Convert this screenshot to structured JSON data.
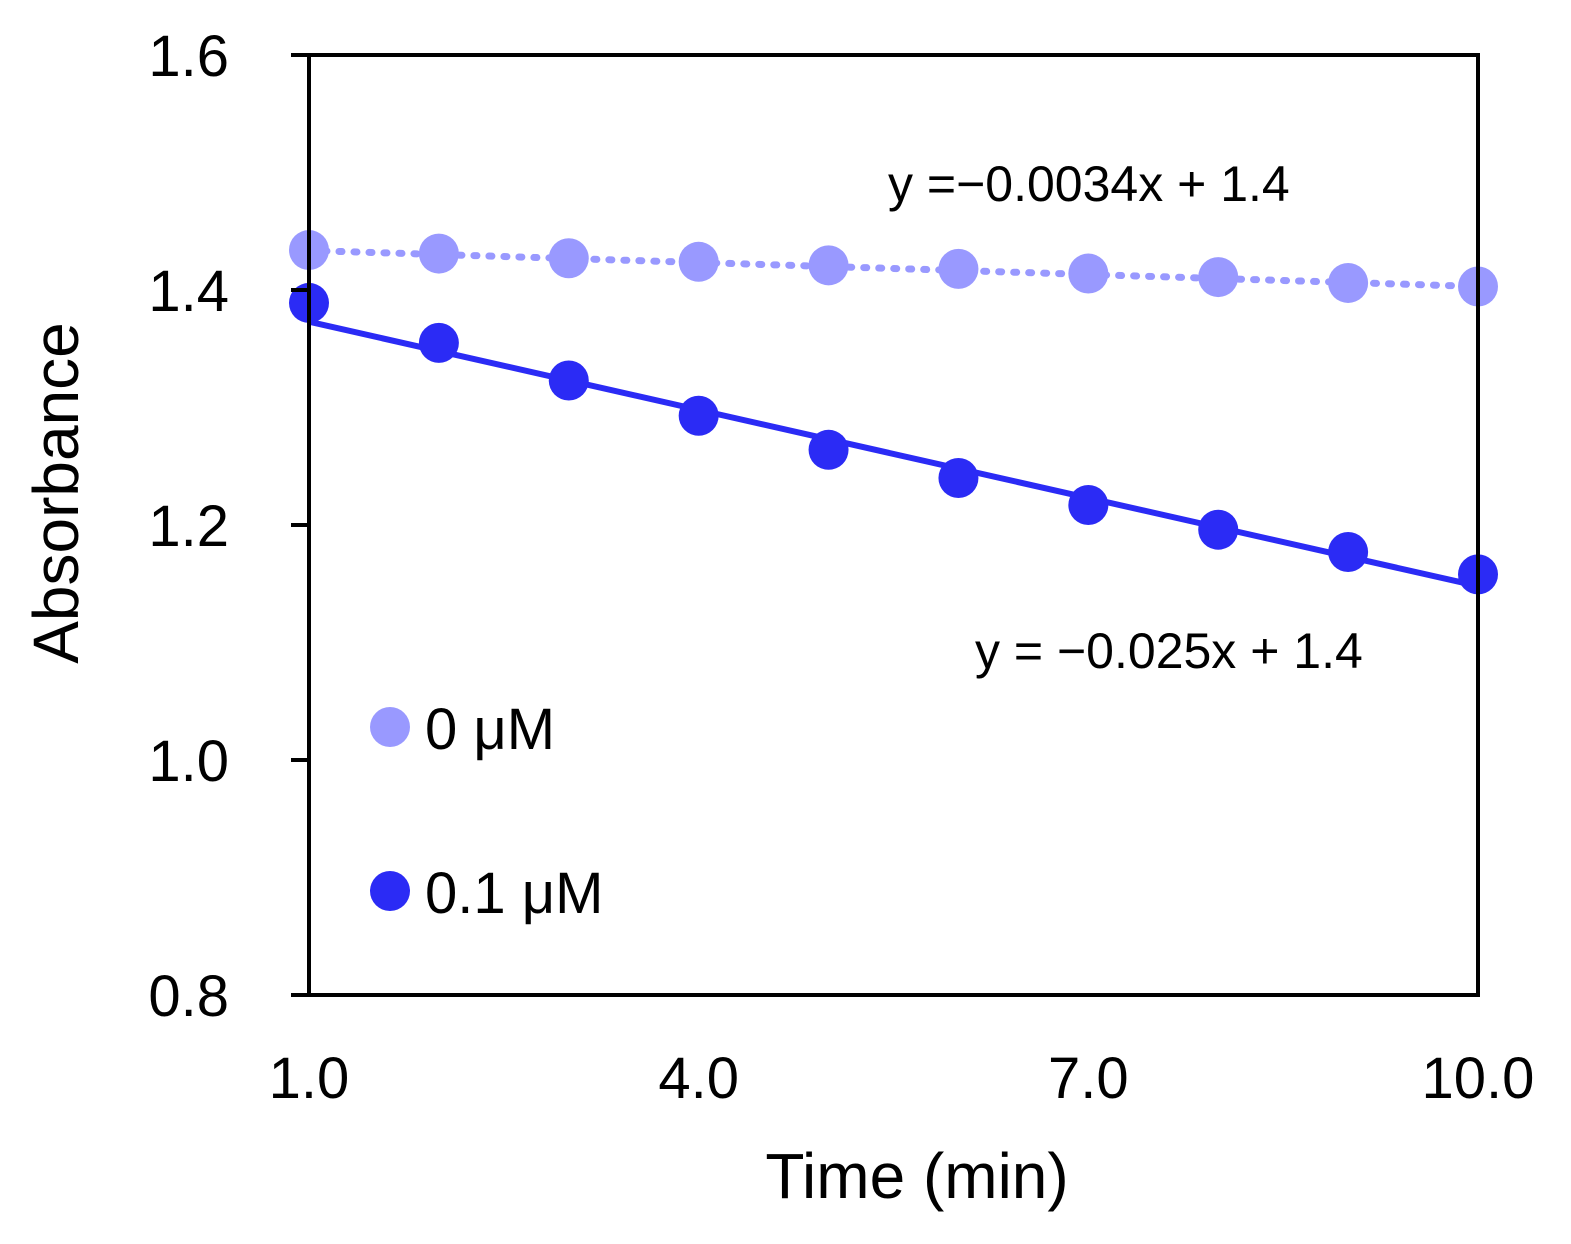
{
  "chart_data": {
    "type": "scatter",
    "title": "",
    "xlabel": "Time (min)",
    "ylabel": "Absorbance",
    "xlim": [
      1.0,
      10.0
    ],
    "ylim": [
      0.8,
      1.6
    ],
    "xticks": [
      1.0,
      4.0,
      7.0,
      10.0
    ],
    "xtick_labels": [
      "1.0",
      "4.0",
      "7.0",
      "10.0"
    ],
    "yticks": [
      0.8,
      1.0,
      1.2,
      1.4,
      1.6
    ],
    "ytick_labels": [
      "0.8",
      "1.0",
      "1.2",
      "1.4",
      "1.6"
    ],
    "grid": false,
    "legend_position": "bottom-left",
    "series": [
      {
        "name": "0 μM",
        "color": "#9999ff",
        "x": [
          1,
          2,
          3,
          4,
          5,
          6,
          7,
          8,
          9,
          10
        ],
        "y": [
          1.434,
          1.431,
          1.427,
          1.424,
          1.421,
          1.418,
          1.414,
          1.411,
          1.406,
          1.403
        ],
        "trendline": {
          "style": "dotted",
          "slope": -0.0034,
          "intercept": 1.437,
          "equation": "y =−0.0034x + 1.4"
        }
      },
      {
        "name": "0.1 μM",
        "color": "#2b2bf5",
        "x": [
          1,
          2,
          3,
          4,
          5,
          6,
          7,
          8,
          9,
          10
        ],
        "y": [
          1.389,
          1.355,
          1.323,
          1.293,
          1.264,
          1.24,
          1.217,
          1.196,
          1.177,
          1.158
        ],
        "trendline": {
          "style": "solid",
          "slope": -0.025,
          "intercept": 1.398,
          "equation": "y = −0.025x + 1.4"
        }
      }
    ]
  }
}
